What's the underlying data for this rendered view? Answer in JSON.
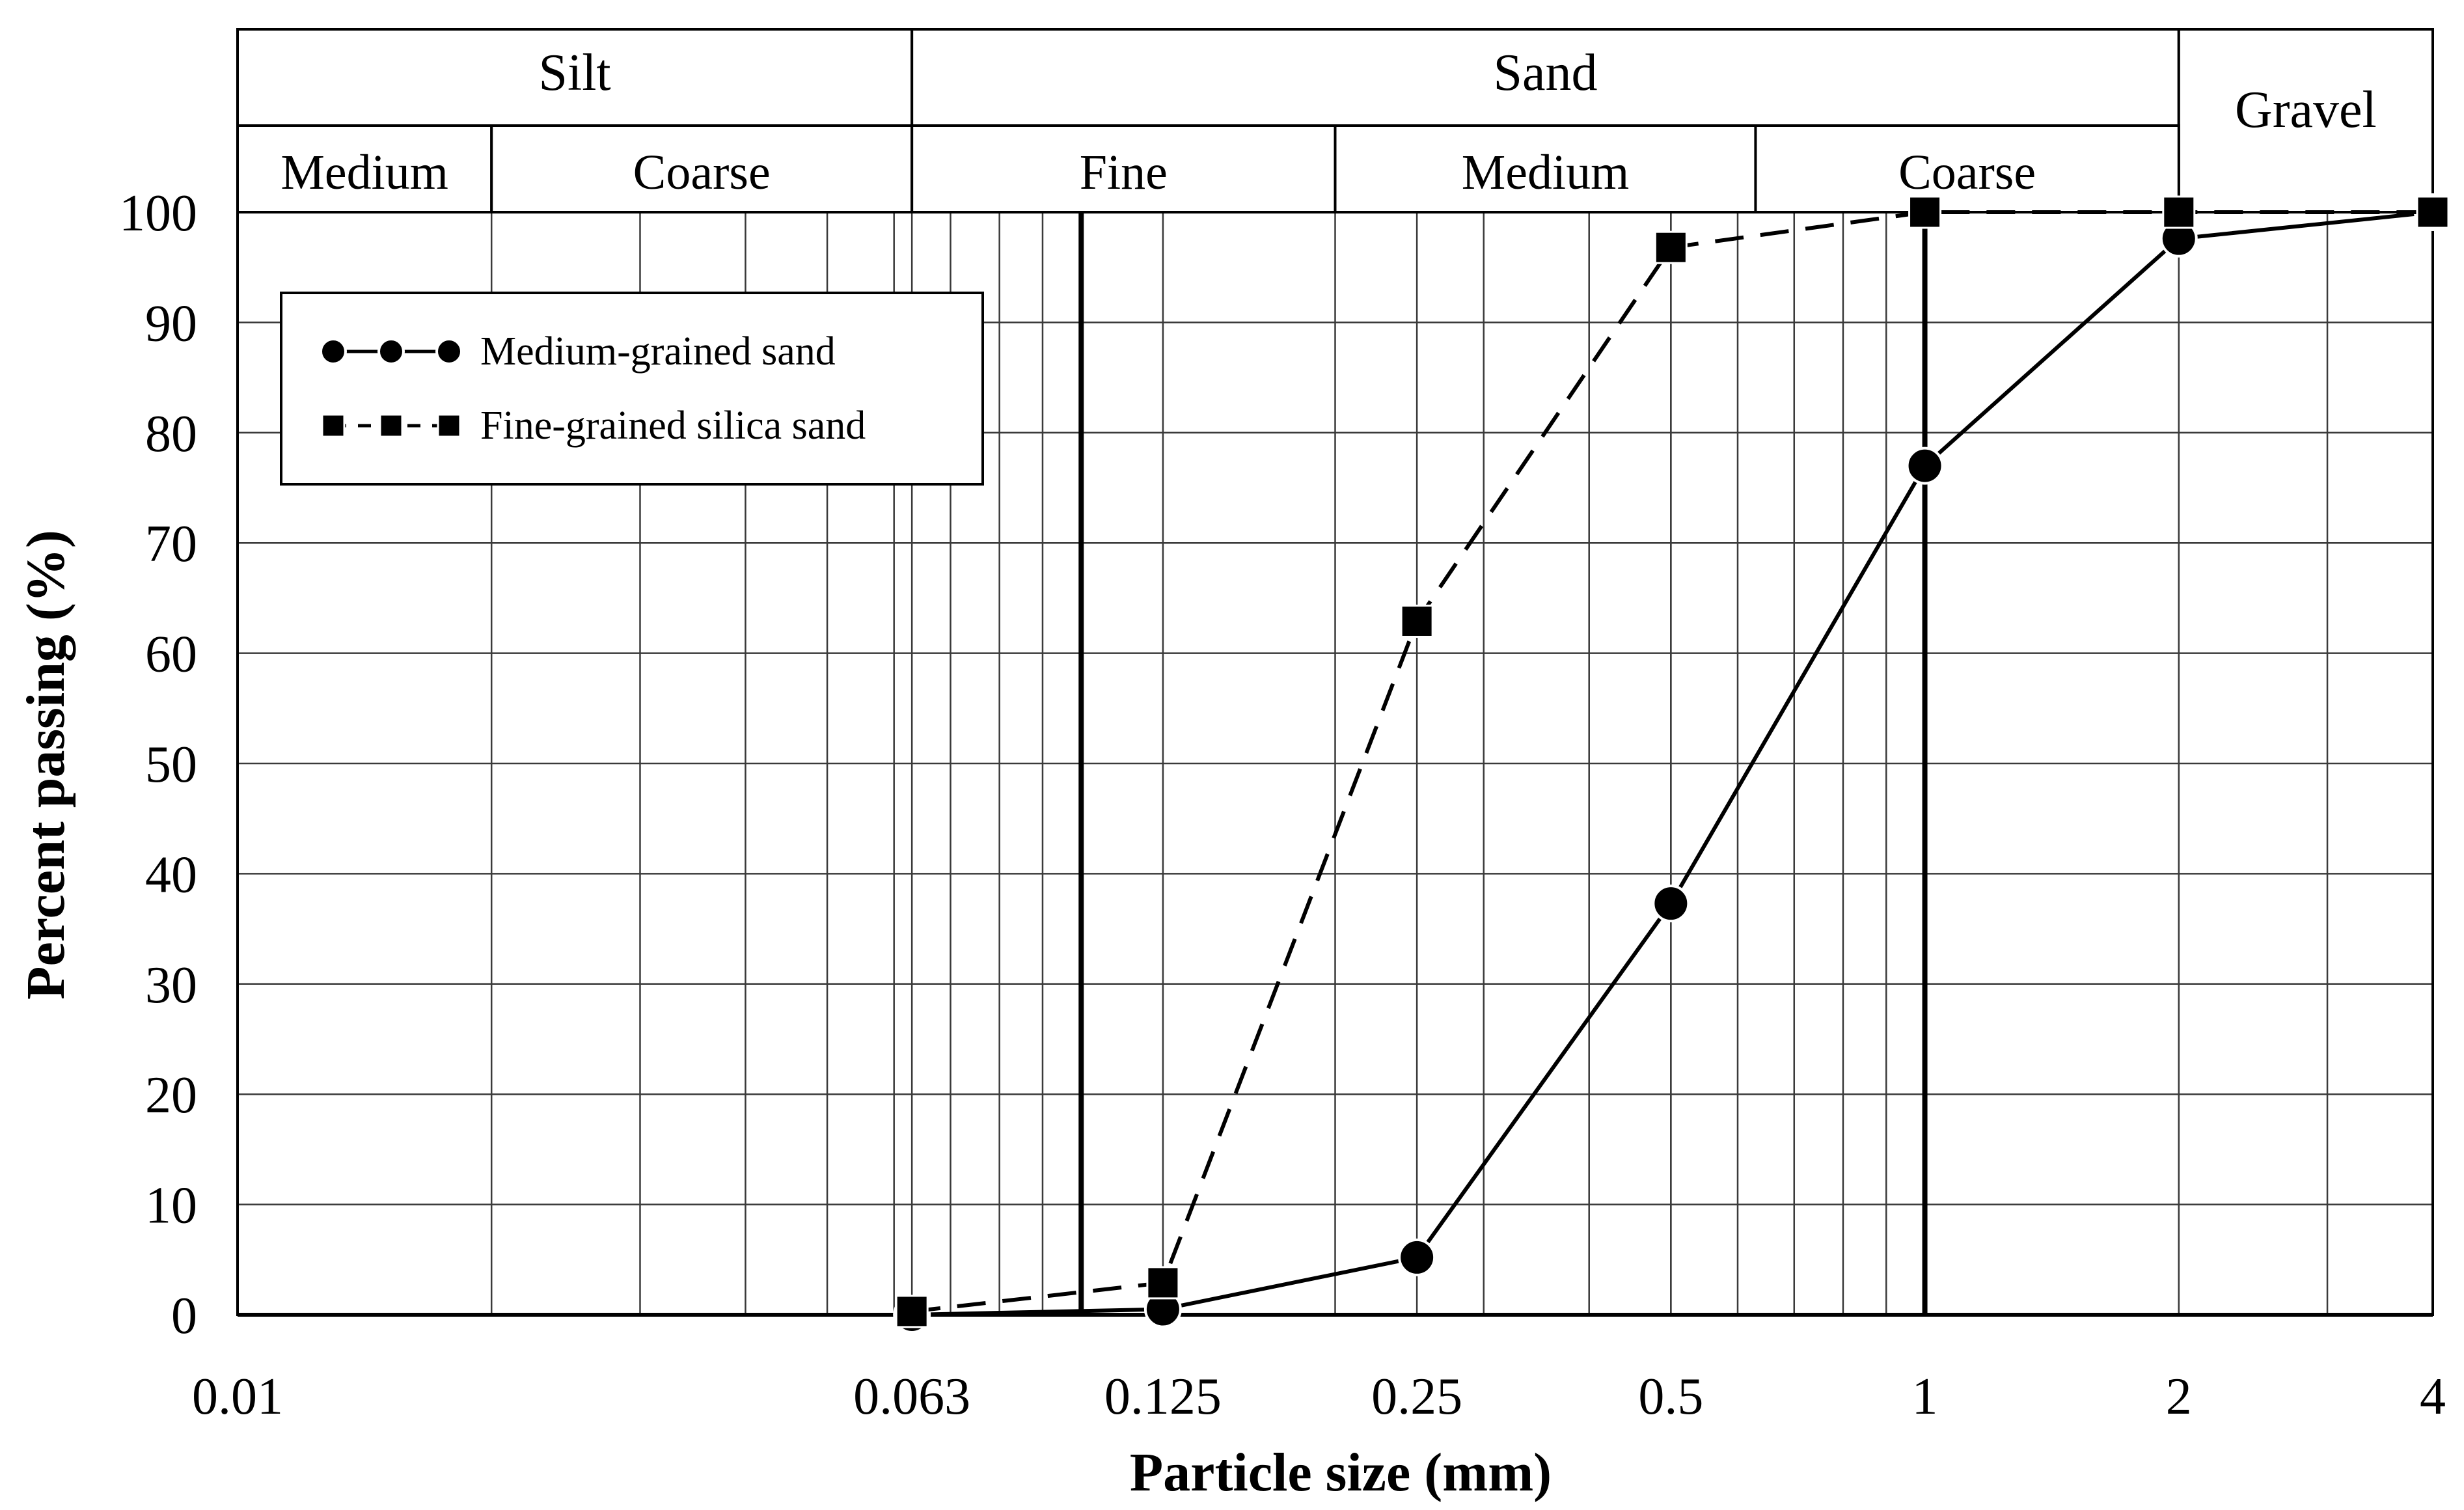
{
  "chart_data": {
    "type": "line",
    "xscale": "log",
    "xlabel": "Particle size (mm)",
    "ylabel": "Percent passing (%)",
    "xlim": [
      0.01,
      4
    ],
    "ylim": [
      0,
      100
    ],
    "yticks": [
      0,
      10,
      20,
      30,
      40,
      50,
      60,
      70,
      80,
      90,
      100
    ],
    "xtick_labels": [
      {
        "value": 0.01,
        "label": "0.01"
      },
      {
        "value": 0.063,
        "label": "0.063"
      },
      {
        "value": 0.125,
        "label": "0.125"
      },
      {
        "value": 0.25,
        "label": "0.25"
      },
      {
        "value": 0.5,
        "label": "0.5"
      },
      {
        "value": 1,
        "label": "1"
      },
      {
        "value": 2,
        "label": "2"
      },
      {
        "value": 4,
        "label": "4"
      }
    ],
    "classification": {
      "top_row": [
        {
          "label": "Silt",
          "from": 0.01,
          "to": 0.063
        },
        {
          "label": "Sand",
          "from": 0.063,
          "to": 2
        },
        {
          "label": "Gravel",
          "from": 2,
          "to": 4
        }
      ],
      "sub_row": [
        {
          "label": "Medium",
          "from": 0.01,
          "to": 0.02
        },
        {
          "label": "Coarse",
          "from": 0.02,
          "to": 0.063
        },
        {
          "label": "Fine",
          "from": 0.063,
          "to": 0.2
        },
        {
          "label": "Medium",
          "from": 0.2,
          "to": 0.63
        },
        {
          "label": "Coarse",
          "from": 0.63,
          "to": 2
        }
      ]
    },
    "boundary_lines": [
      0.1,
      1
    ],
    "series": [
      {
        "name": "Medium-grained sand",
        "marker": "circle",
        "line": "solid",
        "x": [
          0.063,
          0.125,
          0.25,
          0.5,
          1,
          2,
          4
        ],
        "y": [
          0,
          0.5,
          5.2,
          37.3,
          77,
          97.6,
          100
        ]
      },
      {
        "name": "Fine-grained silica sand",
        "marker": "square",
        "line": "dashed",
        "x": [
          0.063,
          0.125,
          0.25,
          0.5,
          1,
          2,
          4
        ],
        "y": [
          0.3,
          2.9,
          62.9,
          96.8,
          100,
          100,
          100
        ]
      }
    ],
    "legend": "upper-left",
    "grid": true
  },
  "colors": {
    "ink": "#000000",
    "background": "#ffffff",
    "grid": "#3a3a3a"
  }
}
